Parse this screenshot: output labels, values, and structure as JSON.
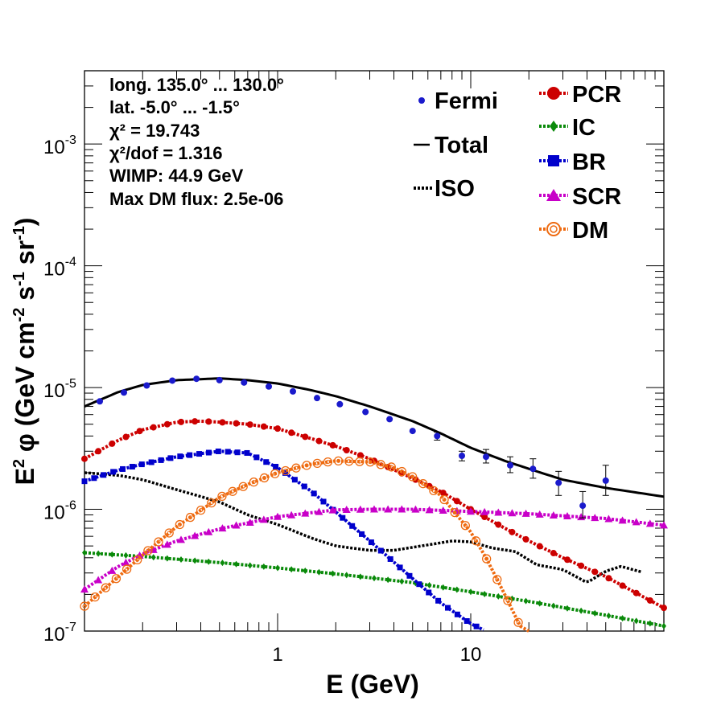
{
  "chart_data": {
    "type": "line",
    "xscale": "log",
    "yscale": "log",
    "xlim": [
      0.1,
      100
    ],
    "ylim": [
      1e-07,
      0.004
    ],
    "grid": false,
    "xlabel": "E (GeV)",
    "ylabel_parts": {
      "a": "E",
      "b": "2",
      "c": " φ (GeV cm",
      "d": "-2",
      "e": " s",
      "f": "-1",
      "g": " sr",
      "h": "-1",
      "i": ")"
    },
    "x_tick_labels": [
      {
        "v": 1,
        "t": "1"
      },
      {
        "v": 10,
        "t": "10"
      }
    ],
    "y_tick_labels": [
      {
        "v": 1e-07,
        "base": "10",
        "exp": "-7"
      },
      {
        "v": 1e-06,
        "base": "10",
        "exp": "-6"
      },
      {
        "v": 1e-05,
        "base": "10",
        "exp": "-5"
      },
      {
        "v": 0.0001,
        "base": "10",
        "exp": "-4"
      },
      {
        "v": 0.001,
        "base": "10",
        "exp": "-3"
      }
    ],
    "info_lines": [
      "long. 135.0° ... 130.0°",
      "lat. -5.0° ... -1.5°",
      "χ² = 19.743",
      "χ²/dof = 1.316",
      "WIMP: 44.9 GeV",
      "Max DM flux: 2.5e-06"
    ],
    "legend_left": [
      {
        "label": "Fermi",
        "style": "point",
        "color": "#1a1acc"
      },
      {
        "label": "Total",
        "style": "solid",
        "color": "#000000"
      },
      {
        "label": "ISO",
        "style": "dotted",
        "color": "#000000"
      }
    ],
    "legend_right": [
      {
        "label": "PCR",
        "marker": "circle",
        "color": "#cc0000"
      },
      {
        "label": "IC",
        "marker": "diamond",
        "color": "#0a8a0a"
      },
      {
        "label": "BR",
        "marker": "square",
        "color": "#0000cc"
      },
      {
        "label": "SCR",
        "marker": "triangle",
        "color": "#c800c8"
      },
      {
        "label": "DM",
        "marker": "open-circle",
        "color": "#ee6a10"
      }
    ],
    "fermi_points": [
      {
        "x": 0.12,
        "y": 7.7e-06
      },
      {
        "x": 0.16,
        "y": 9.1e-06
      },
      {
        "x": 0.21,
        "y": 1.04e-05
      },
      {
        "x": 0.285,
        "y": 1.14e-05
      },
      {
        "x": 0.38,
        "y": 1.18e-05
      },
      {
        "x": 0.5,
        "y": 1.15e-05
      },
      {
        "x": 0.67,
        "y": 1.1e-05
      },
      {
        "x": 0.9,
        "y": 1.02e-05
      },
      {
        "x": 1.2,
        "y": 9.3e-06
      },
      {
        "x": 1.6,
        "y": 8.2e-06
      },
      {
        "x": 2.1,
        "y": 7.3e-06
      },
      {
        "x": 2.85,
        "y": 6.3e-06
      },
      {
        "x": 3.8,
        "y": 5.5e-06
      },
      {
        "x": 5.0,
        "y": 4.4e-06
      },
      {
        "x": 6.7,
        "y": 4e-06,
        "err": [
          3.7e-06,
          4.3e-06
        ]
      },
      {
        "x": 9.0,
        "y": 2.75e-06,
        "err": [
          2.5e-06,
          3e-06
        ]
      },
      {
        "x": 12.0,
        "y": 2.7e-06,
        "err": [
          2.4e-06,
          3.1e-06
        ]
      },
      {
        "x": 16.0,
        "y": 2.3e-06,
        "err": [
          2e-06,
          2.7e-06
        ]
      },
      {
        "x": 21.0,
        "y": 2.15e-06,
        "err": [
          1.8e-06,
          2.6e-06
        ]
      },
      {
        "x": 28.5,
        "y": 1.65e-06,
        "err": [
          1.3e-06,
          2.05e-06
        ]
      },
      {
        "x": 38.0,
        "y": 1.07e-06,
        "err": [
          8.5e-07,
          1.4e-06
        ]
      },
      {
        "x": 50.0,
        "y": 1.72e-06,
        "err": [
          1.3e-06,
          2.3e-06
        ]
      }
    ],
    "series": [
      {
        "name": "Total",
        "style": "solid",
        "marker": "none",
        "color": "#000000",
        "x": [
          0.1,
          0.15,
          0.2,
          0.3,
          0.5,
          0.7,
          1,
          1.5,
          2,
          3,
          5,
          7,
          10,
          15,
          20,
          30,
          50,
          100
        ],
        "y": [
          7e-06,
          9.2e-06,
          1.05e-05,
          1.15e-05,
          1.19e-05,
          1.15e-05,
          1.08e-05,
          9.5e-06,
          8.5e-06,
          7e-06,
          5.3e-06,
          4.2e-06,
          3.2e-06,
          2.5e-06,
          2.15e-06,
          1.75e-06,
          1.5e-06,
          1.27e-06
        ]
      },
      {
        "name": "ISO",
        "style": "dotted",
        "marker": "none",
        "color": "#000000",
        "x": [
          0.1,
          0.15,
          0.2,
          0.3,
          0.5,
          0.7,
          1,
          1.5,
          2,
          3,
          4,
          6,
          8,
          10,
          13,
          17,
          22,
          30,
          40,
          45,
          50,
          60,
          80
        ],
        "y": [
          2e-06,
          1.9e-06,
          1.75e-06,
          1.45e-06,
          1.15e-06,
          9e-07,
          7.5e-07,
          5.8e-07,
          5e-07,
          4.6e-07,
          4.6e-07,
          5.1e-07,
          5.5e-07,
          5.4e-07,
          4.8e-07,
          4.5e-07,
          3.5e-07,
          3.2e-07,
          2.5e-07,
          2.8e-07,
          3.1e-07,
          3.4e-07,
          3e-07
        ]
      },
      {
        "name": "PCR",
        "style": "dashed",
        "marker": "circle",
        "color": "#cc0000",
        "x": [
          0.1,
          0.15,
          0.2,
          0.3,
          0.4,
          0.5,
          0.7,
          1,
          1.5,
          2,
          3,
          5,
          7,
          10,
          15,
          20,
          30,
          50,
          100
        ],
        "y": [
          2.6e-06,
          3.7e-06,
          4.5e-06,
          5.2e-06,
          5.3e-06,
          5.2e-06,
          5e-06,
          4.6e-06,
          3.8e-06,
          3.3e-06,
          2.6e-06,
          1.8e-06,
          1.4e-06,
          1e-06,
          7e-07,
          5.5e-07,
          4e-07,
          2.8e-07,
          1.55e-07
        ]
      },
      {
        "name": "IC",
        "style": "dashed",
        "marker": "diamond",
        "color": "#0a8a0a",
        "x": [
          0.1,
          0.2,
          0.5,
          1,
          2,
          5,
          10,
          20,
          50,
          100
        ],
        "y": [
          4.4e-07,
          4.1e-07,
          3.65e-07,
          3.3e-07,
          2.95e-07,
          2.5e-07,
          2.1e-07,
          1.75e-07,
          1.35e-07,
          1.1e-07
        ]
      },
      {
        "name": "BR",
        "style": "dashed",
        "marker": "square",
        "color": "#0000cc",
        "x": [
          0.1,
          0.15,
          0.2,
          0.3,
          0.5,
          0.7,
          1,
          1.5,
          2,
          3,
          5,
          7,
          10,
          12
        ],
        "y": [
          1.7e-06,
          2.1e-06,
          2.35e-06,
          2.7e-06,
          3e-06,
          2.9e-06,
          2.2e-06,
          1.4e-06,
          9.5e-07,
          5.5e-07,
          2.7e-07,
          1.7e-07,
          1.15e-07,
          1e-07
        ]
      },
      {
        "name": "SCR",
        "style": "dashed",
        "marker": "triangle",
        "color": "#c800c8",
        "x": [
          0.1,
          0.15,
          0.2,
          0.3,
          0.5,
          1,
          2,
          3,
          5,
          10,
          20,
          50,
          100
        ],
        "y": [
          2.2e-07,
          3.4e-07,
          4.3e-07,
          5.5e-07,
          6.9e-07,
          8.7e-07,
          9.9e-07,
          1e-06,
          1e-06,
          9.6e-07,
          9.2e-07,
          8.4e-07,
          7.4e-07
        ]
      },
      {
        "name": "DM",
        "style": "dashed",
        "marker": "open-circle",
        "color": "#ee6a10",
        "x": [
          0.1,
          0.15,
          0.2,
          0.3,
          0.5,
          0.7,
          1,
          1.5,
          2,
          3,
          4,
          5,
          7,
          10,
          12,
          15,
          18,
          20
        ],
        "y": [
          1.6e-07,
          2.8e-07,
          4.2e-07,
          7.2e-07,
          1.25e-06,
          1.6e-06,
          2e-06,
          2.35e-06,
          2.5e-06,
          2.45e-06,
          2.2e-06,
          1.85e-06,
          1.3e-06,
          6.5e-07,
          4e-07,
          2e-07,
          1.1e-07,
          1e-07
        ]
      }
    ]
  }
}
